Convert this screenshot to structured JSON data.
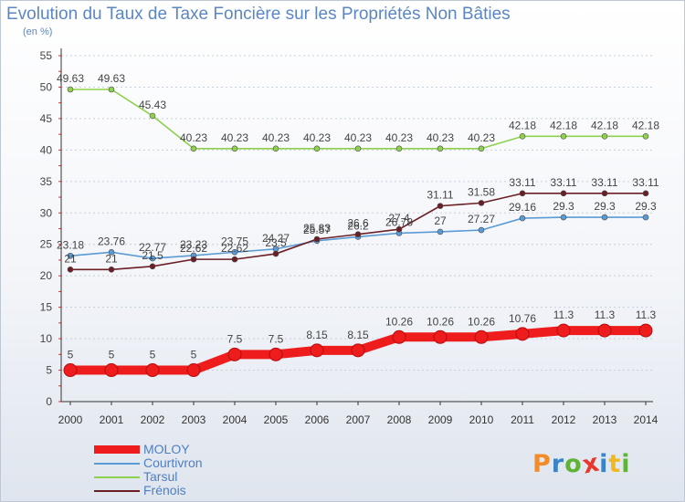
{
  "title": "Evolution du Taux de Taxe Foncière sur les Propriétés Non Bâties",
  "subtitle": "(en %)",
  "brand": {
    "letters": [
      "P",
      "r",
      "o",
      "x",
      "i",
      "t",
      "i"
    ],
    "colors": [
      "#f28c28",
      "#3a83c9",
      "#5fb336",
      "#e8382c",
      "#3a83c9",
      "#f2b81f",
      "#5fb336"
    ]
  },
  "chart_data": {
    "type": "line",
    "x": [
      "2000",
      "2001",
      "2002",
      "2003",
      "2004",
      "2005",
      "2006",
      "2007",
      "2008",
      "2009",
      "2010",
      "2011",
      "2012",
      "2013",
      "2014"
    ],
    "ylim": [
      0,
      55
    ],
    "yticks": [
      "0",
      "5",
      "10",
      "15",
      "20",
      "25",
      "30",
      "35",
      "40",
      "45",
      "50",
      "55"
    ],
    "grid": "horizontal",
    "legend_position": "bottom-left",
    "series": [
      {
        "name": "MOLOY",
        "color": "#ee1c1c",
        "emphasis": true,
        "values": [
          5,
          5,
          5,
          5,
          7.5,
          7.5,
          8.15,
          8.15,
          10.26,
          10.26,
          10.26,
          10.76,
          11.3,
          11.3,
          11.3
        ],
        "labels": [
          "5",
          "5",
          "5",
          "5",
          "7.5",
          "7.5",
          "8.15",
          "8.15",
          "10.26",
          "10.26",
          "10.26",
          "10.76",
          "11.3",
          "11.3",
          "11.3"
        ]
      },
      {
        "name": "Courtivron",
        "color": "#5b9bd5",
        "emphasis": false,
        "values": [
          23.18,
          23.76,
          22.77,
          23.23,
          23.75,
          24.27,
          25.57,
          26.2,
          26.78,
          27,
          27.27,
          29.16,
          29.3,
          29.3,
          29.3
        ],
        "labels": [
          "23.18",
          "23.76",
          "22.77",
          "23.23",
          "23.75",
          "24.27",
          "25.57",
          "26.2",
          "26.78",
          "27",
          "27.27",
          "29.16",
          "29.3",
          "29.3",
          "29.3"
        ]
      },
      {
        "name": "Tarsul",
        "color": "#8fd14f",
        "emphasis": false,
        "values": [
          49.63,
          49.63,
          45.43,
          40.23,
          40.23,
          40.23,
          40.23,
          40.23,
          40.23,
          40.23,
          40.23,
          42.18,
          42.18,
          42.18,
          42.18
        ],
        "labels": [
          "49.63",
          "49.63",
          "45.43",
          "40.23",
          "40.23",
          "40.23",
          "40.23",
          "40.23",
          "40.23",
          "40.23",
          "40.23",
          "42.18",
          "42.18",
          "42.18",
          "42.18"
        ]
      },
      {
        "name": "Frénois",
        "color": "#6b1f25",
        "emphasis": false,
        "values": [
          21,
          21,
          21.5,
          22.62,
          22.62,
          23.5,
          25.83,
          26.6,
          27.4,
          31.11,
          31.58,
          33.11,
          33.11,
          33.11,
          33.11
        ],
        "labels": [
          "21",
          "21",
          "21.5",
          "22.62",
          "22.62",
          "23.5",
          "25.83",
          "26.6",
          "27.4",
          "31.11",
          "31.58",
          "33.11",
          "33.11",
          "33.11",
          "33.11"
        ]
      }
    ]
  }
}
